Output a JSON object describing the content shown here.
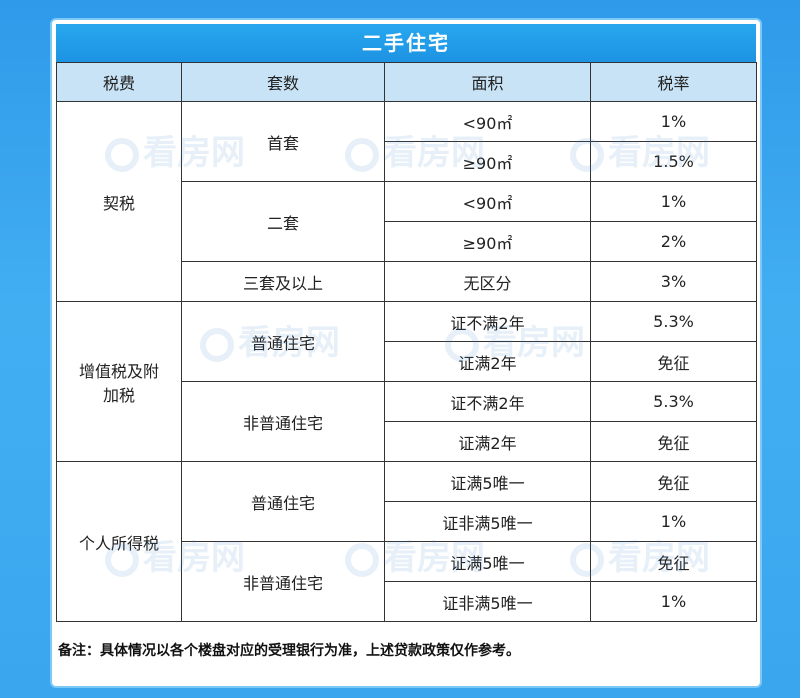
{
  "title": "二手住宅",
  "headers": [
    "税费",
    "套数",
    "面积",
    "税率"
  ],
  "rows": {
    "qishui": {
      "label": "契税",
      "first": {
        "label": "首套",
        "a1": "<90㎡",
        "r1": "1%",
        "a2": "≥90㎡",
        "r2": "1.5%"
      },
      "second": {
        "label": "二套",
        "a1": "<90㎡",
        "r1": "1%",
        "a2": "≥90㎡",
        "r2": "2%"
      },
      "third": {
        "label": "三套及以上",
        "a1": "无区分",
        "r1": "3%"
      }
    },
    "vat": {
      "label": "增值税及附加税",
      "ordinary": {
        "label": "普通住宅",
        "a1": "证不满2年",
        "r1": "5.3%",
        "a2": "证满2年",
        "r2": "免征"
      },
      "nonordinary": {
        "label": "非普通住宅",
        "a1": "证不满2年",
        "r1": "5.3%",
        "a2": "证满2年",
        "r2": "免征"
      }
    },
    "pit": {
      "label": "个人所得税",
      "ordinary": {
        "label": "普通住宅",
        "a1": "证满5唯一",
        "r1": "免征",
        "a2": "证非满5唯一",
        "r2": "1%"
      },
      "nonordinary": {
        "label": "非普通住宅",
        "a1": "证满5唯一",
        "r1": "免征",
        "a2": "证非满5唯一",
        "r2": "1%"
      }
    }
  },
  "note": "备注：具体情况以各个楼盘对应的受理银行为准，上述贷款政策仅作参考。",
  "watermark": "看房网",
  "colors": {
    "background": "#3aa6ee",
    "title_bar": "#1d93e3",
    "header_bg": "#c8e3f6"
  }
}
